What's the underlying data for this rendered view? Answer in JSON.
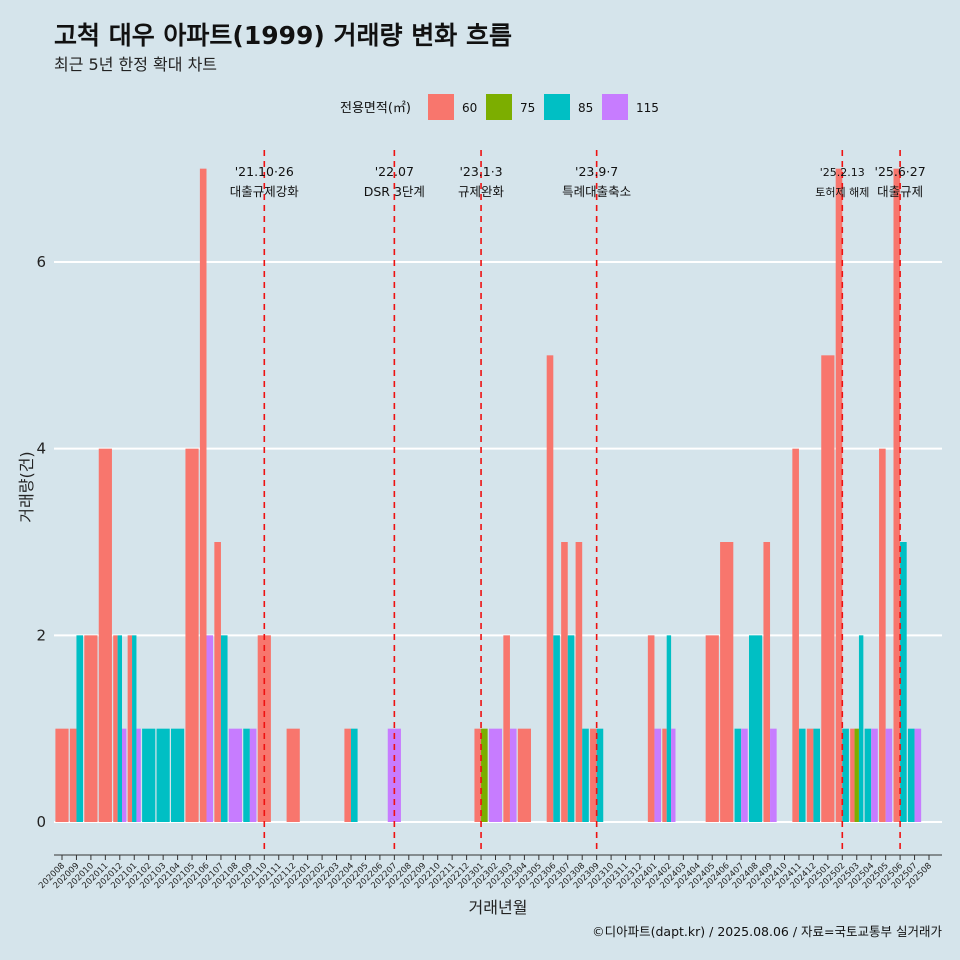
{
  "chart_data": {
    "type": "bar",
    "title": "고척 대우 아파트(1999) 거래량 변화 흐름",
    "subtitle": "최근 5년 한정 확대 차트",
    "xlabel": "거래년월",
    "ylabel": "거래량(건)",
    "ylim": [
      -0.3,
      7.2
    ],
    "yticks": [
      0,
      2,
      4,
      6
    ],
    "legend_title": "전용면적(㎡)",
    "legend_position": "top",
    "caption": "©디아파트(dapt.kr) / 2025.08.06 / 자료=국토교통부 실거래가",
    "categories": [
      "202008",
      "202009",
      "202010",
      "202011",
      "202012",
      "202101",
      "202102",
      "202103",
      "202104",
      "202105",
      "202106",
      "202107",
      "202108",
      "202109",
      "202110",
      "202111",
      "202112",
      "202201",
      "202202",
      "202203",
      "202204",
      "202205",
      "202206",
      "202207",
      "202208",
      "202209",
      "202210",
      "202211",
      "202212",
      "202301",
      "202302",
      "202303",
      "202304",
      "202305",
      "202306",
      "202307",
      "202308",
      "202309",
      "202310",
      "202311",
      "202312",
      "202401",
      "202402",
      "202403",
      "202404",
      "202405",
      "202406",
      "202407",
      "202408",
      "202409",
      "202410",
      "202411",
      "202412",
      "202501",
      "202502",
      "202503",
      "202504",
      "202505",
      "202506",
      "202507",
      "202508"
    ],
    "series": [
      {
        "name": "60",
        "color": "#f8766d",
        "values": [
          1,
          1,
          2,
          4,
          2,
          2,
          0,
          0,
          0,
          4,
          7,
          3,
          0,
          0,
          2,
          0,
          1,
          0,
          0,
          0,
          1,
          0,
          0,
          0,
          0,
          0,
          0,
          0,
          0,
          1,
          0,
          2,
          1,
          0,
          5,
          3,
          3,
          1,
          0,
          0,
          0,
          2,
          1,
          0,
          0,
          2,
          3,
          0,
          0,
          3,
          0,
          4,
          1,
          5,
          7,
          1,
          0,
          4,
          7,
          0,
          0
        ]
      },
      {
        "name": "75",
        "color": "#7cae00",
        "values": [
          0,
          0,
          0,
          0,
          0,
          0,
          0,
          0,
          0,
          0,
          0,
          0,
          0,
          0,
          0,
          0,
          0,
          0,
          0,
          0,
          0,
          0,
          0,
          0,
          0,
          0,
          0,
          0,
          0,
          1,
          0,
          0,
          0,
          0,
          0,
          0,
          0,
          0,
          0,
          0,
          0,
          0,
          0,
          0,
          0,
          0,
          0,
          0,
          0,
          0,
          0,
          0,
          0,
          0,
          0,
          1,
          0,
          0,
          0,
          0,
          0
        ]
      },
      {
        "name": "85",
        "color": "#00bfc4",
        "values": [
          0,
          2,
          0,
          0,
          2,
          2,
          1,
          1,
          1,
          0,
          0,
          2,
          0,
          1,
          0,
          0,
          0,
          0,
          0,
          0,
          1,
          0,
          0,
          0,
          0,
          0,
          0,
          0,
          0,
          0,
          0,
          0,
          0,
          0,
          2,
          2,
          1,
          1,
          0,
          0,
          0,
          0,
          2,
          0,
          0,
          0,
          0,
          1,
          2,
          0,
          0,
          1,
          1,
          0,
          1,
          2,
          1,
          0,
          3,
          1,
          0
        ]
      },
      {
        "name": "115",
        "color": "#c77cff",
        "values": [
          0,
          0,
          0,
          0,
          1,
          1,
          0,
          0,
          0,
          0,
          2,
          0,
          1,
          1,
          0,
          0,
          0,
          0,
          0,
          0,
          0,
          0,
          0,
          1,
          0,
          0,
          0,
          0,
          0,
          0,
          1,
          1,
          0,
          0,
          0,
          0,
          0,
          0,
          0,
          0,
          0,
          1,
          1,
          0,
          0,
          0,
          0,
          1,
          0,
          1,
          0,
          0,
          0,
          0,
          0,
          0,
          1,
          1,
          0,
          1,
          0
        ]
      }
    ],
    "vlines": [
      {
        "position": 14.0,
        "line1": "'21.10·26",
        "line2": "대출규제강화",
        "color": "#ee1111",
        "size": "normal"
      },
      {
        "position": 23.0,
        "line1": "'22.07",
        "line2": "DSR 3단계",
        "color": "#ee1111",
        "size": "normal"
      },
      {
        "position": 29.0,
        "line1": "'23.1·3",
        "line2": "규제완화",
        "color": "#ee1111",
        "size": "normal"
      },
      {
        "position": 37.0,
        "line1": "'23.9·7",
        "line2": "특례대출축소",
        "color": "#ee1111",
        "size": "normal"
      },
      {
        "position": 54.0,
        "line1": "'25.2.13",
        "line2": "토허제 해제",
        "color": "#ee1111",
        "size": "small"
      },
      {
        "position": 58.0,
        "line1": "'25.6·27",
        "line2": "대출규제",
        "color": "#ee1111",
        "size": "normal"
      }
    ]
  }
}
